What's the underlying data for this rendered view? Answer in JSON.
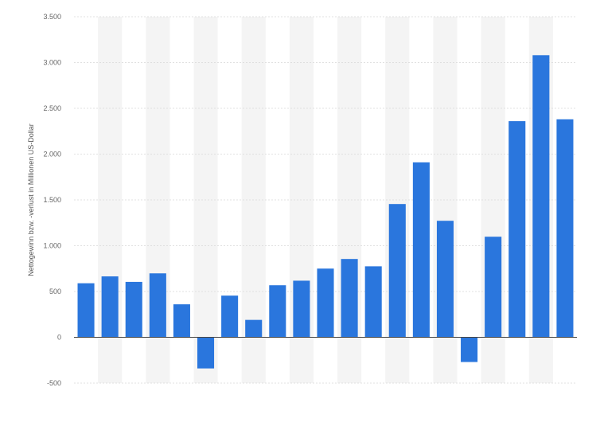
{
  "chart_data": {
    "type": "bar",
    "ylabel": "Nettogewinn bzw. -verlust in Millionen US-Dollar",
    "xlabel": "",
    "ylim": [
      -500,
      3500
    ],
    "y_ticks": [
      -500,
      0,
      500,
      1000,
      1500,
      2000,
      2500,
      3000,
      3500
    ],
    "y_tick_labels": [
      "-500",
      "0",
      "500",
      "1.000",
      "1.500",
      "2.000",
      "2.500",
      "3.000",
      "3.500"
    ],
    "grid": true,
    "categories": [
      "",
      "",
      "",
      "",
      "",
      "",
      "",
      "",
      "",
      "",
      "",
      "",
      "",
      "",
      "",
      "",
      "",
      "",
      "",
      "",
      ""
    ],
    "values": [
      590,
      665,
      605,
      698,
      360,
      -340,
      455,
      190,
      568,
      618,
      750,
      855,
      775,
      1455,
      1910,
      1272,
      -270,
      1098,
      2360,
      3080,
      2380
    ],
    "colors": {
      "bar": "#2a76dd",
      "band": "#f4f4f4",
      "grid": "#d8d8d8",
      "zero": "#444444"
    }
  }
}
